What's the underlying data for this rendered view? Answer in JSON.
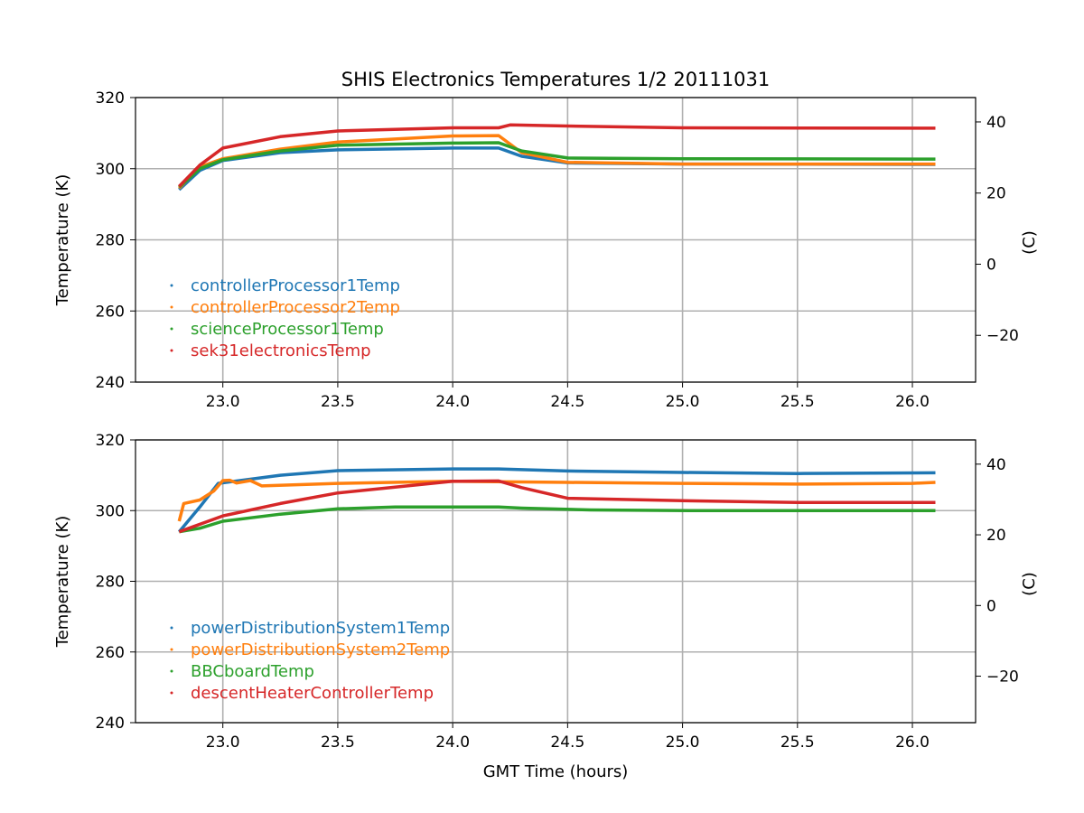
{
  "chart_data": [
    {
      "type": "line",
      "title": "SHIS Electronics Temperatures 1/2 20111031",
      "xlabel": "",
      "ylabel": "Temperature (K)",
      "ylabel_right": "(C)",
      "xlim": [
        22.62,
        26.275
      ],
      "ylim": [
        240,
        320
      ],
      "xticks": [
        23.0,
        23.5,
        24.0,
        24.5,
        25.0,
        25.5,
        26.0
      ],
      "yticks": [
        240,
        260,
        280,
        300,
        320
      ],
      "yticks_right": [
        -20,
        0,
        20,
        40
      ],
      "grid": true,
      "legend": "center-left",
      "series": [
        {
          "name": "controllerProcessor1Temp",
          "color": "#1f77b4",
          "x": [
            22.81,
            22.9,
            23.0,
            23.25,
            23.5,
            24.0,
            24.2,
            24.3,
            24.5,
            25.0,
            26.1
          ],
          "y": [
            294.1,
            299.5,
            302.3,
            304.5,
            305.3,
            305.8,
            305.8,
            303.5,
            301.6,
            301.3,
            301.2
          ]
        },
        {
          "name": "controllerProcessor2Temp",
          "color": "#ff7f0e",
          "x": [
            22.81,
            22.9,
            23.0,
            23.25,
            23.5,
            24.0,
            24.2,
            24.3,
            24.5,
            25.0,
            26.1
          ],
          "y": [
            294.5,
            300.5,
            302.8,
            305.5,
            307.5,
            309.2,
            309.3,
            304.5,
            301.8,
            301.3,
            301.3
          ]
        },
        {
          "name": "scienceProcessor1Temp",
          "color": "#2ca02c",
          "x": [
            22.81,
            22.9,
            23.0,
            23.25,
            23.5,
            24.0,
            24.2,
            24.3,
            24.5,
            25.0,
            26.1
          ],
          "y": [
            294.8,
            300.0,
            302.5,
            305.0,
            306.6,
            307.2,
            307.3,
            305.0,
            303.0,
            302.8,
            302.7
          ]
        },
        {
          "name": "sek31electronicsTemp",
          "color": "#d62728",
          "x": [
            22.81,
            22.9,
            23.0,
            23.25,
            23.5,
            24.0,
            24.2,
            24.25,
            24.5,
            25.0,
            26.1
          ],
          "y": [
            295.0,
            301.0,
            305.8,
            309.0,
            310.6,
            311.5,
            311.5,
            312.3,
            312.0,
            311.5,
            311.4
          ]
        }
      ]
    },
    {
      "type": "line",
      "title": "",
      "xlabel": "GMT Time (hours)",
      "ylabel": "Temperature (K)",
      "ylabel_right": "(C)",
      "xlim": [
        22.62,
        26.275
      ],
      "ylim": [
        240,
        320
      ],
      "xticks": [
        23.0,
        23.5,
        24.0,
        24.5,
        25.0,
        25.5,
        26.0
      ],
      "yticks": [
        240,
        260,
        280,
        300,
        320
      ],
      "yticks_right": [
        -20,
        0,
        20,
        40
      ],
      "grid": true,
      "legend": "center-left",
      "series": [
        {
          "name": "powerDistributionSystem1Temp",
          "color": "#1f77b4",
          "x": [
            22.81,
            22.9,
            22.98,
            23.25,
            23.5,
            24.0,
            24.2,
            24.5,
            25.0,
            25.5,
            26.1
          ],
          "y": [
            294.0,
            301.0,
            307.7,
            310.0,
            311.3,
            311.8,
            311.8,
            311.2,
            310.8,
            310.5,
            310.7
          ]
        },
        {
          "name": "powerDistributionSystem2Temp",
          "color": "#ff7f0e",
          "x": [
            22.81,
            22.83,
            22.9,
            22.96,
            23.0,
            23.03,
            23.06,
            23.12,
            23.17,
            23.5,
            24.0,
            24.5,
            25.0,
            25.5,
            26.0,
            26.1
          ],
          "y": [
            297.0,
            302.0,
            303.0,
            305.5,
            308.5,
            308.6,
            307.8,
            308.5,
            307.0,
            307.7,
            308.3,
            308.0,
            307.7,
            307.5,
            307.7,
            308.0
          ]
        },
        {
          "name": "BBCboardTemp",
          "color": "#2ca02c",
          "x": [
            22.81,
            22.9,
            23.0,
            23.25,
            23.5,
            23.75,
            24.2,
            24.3,
            24.6,
            25.05,
            26.1
          ],
          "y": [
            294.0,
            295.0,
            297.0,
            299.0,
            300.5,
            301.0,
            301.0,
            300.7,
            300.2,
            300.0,
            300.0
          ]
        },
        {
          "name": "descentHeaterControllerTemp",
          "color": "#d62728",
          "x": [
            22.81,
            23.0,
            23.25,
            23.5,
            24.0,
            24.2,
            24.3,
            24.5,
            25.0,
            25.5,
            26.1
          ],
          "y": [
            294.0,
            298.5,
            302.0,
            305.0,
            308.3,
            308.4,
            306.5,
            303.5,
            302.8,
            302.3,
            302.3
          ]
        }
      ]
    }
  ]
}
